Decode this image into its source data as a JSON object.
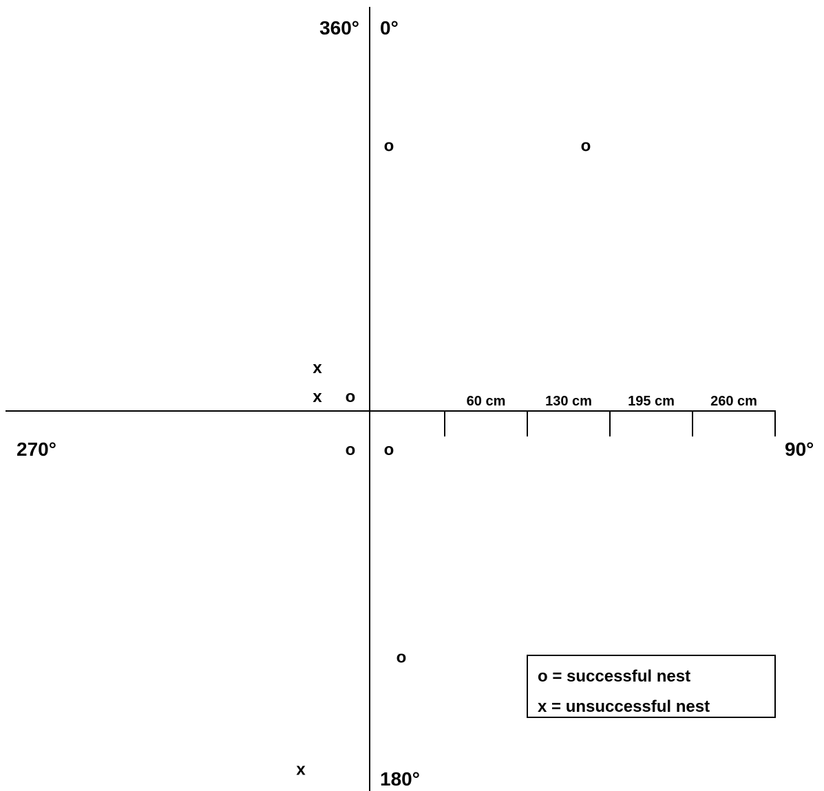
{
  "chart_data": {
    "type": "scatter",
    "title": "",
    "directions": {
      "north_right": "0°",
      "north_left": "360°",
      "east": "90°",
      "south": "180°",
      "west": "270°"
    },
    "distance_scale": {
      "unit": "cm",
      "ticks": [
        {
          "value": 60,
          "label": "60 cm"
        },
        {
          "value": 130,
          "label": "130 cm"
        },
        {
          "value": 195,
          "label": "195 cm"
        },
        {
          "value": 260,
          "label": "260 cm"
        }
      ]
    },
    "series": [
      {
        "name": "successful nest",
        "symbol": "o",
        "points": [
          {
            "x": 14,
            "y": 200
          },
          {
            "x": 157,
            "y": 200
          },
          {
            "x": -14,
            "y": 10
          },
          {
            "x": -14,
            "y": -30
          },
          {
            "x": 14,
            "y": -30
          },
          {
            "x": 23,
            "y": -187
          }
        ]
      },
      {
        "name": "unsuccessful nest",
        "symbol": "x",
        "points": [
          {
            "x": -38,
            "y": 32
          },
          {
            "x": -38,
            "y": 10
          },
          {
            "x": -50,
            "y": -272
          }
        ]
      }
    ],
    "legend": {
      "placement": "bottom-right",
      "entries": [
        "o = successful nest",
        "x = unsuccessful nest"
      ]
    },
    "grid": false
  }
}
